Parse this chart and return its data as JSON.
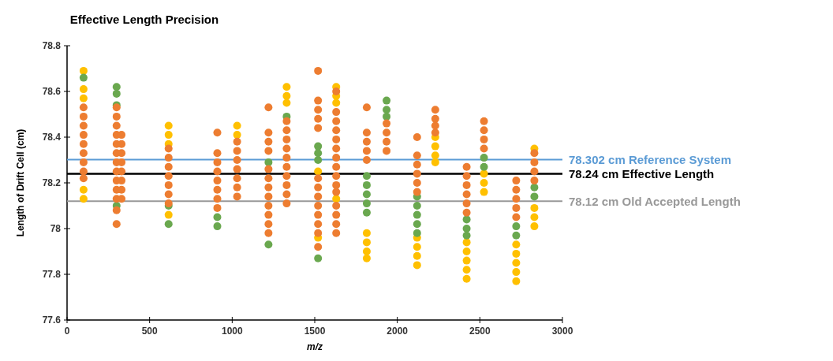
{
  "chart_data": {
    "type": "scatter",
    "title": "Effective Length Precision",
    "xlabel": "m/z",
    "ylabel": "Length of Drift Cell (cm)",
    "xlim": [
      0,
      3000
    ],
    "xticks": [
      0,
      500,
      1000,
      1500,
      2000,
      2500,
      3000
    ],
    "ylim": [
      77.6,
      78.8
    ],
    "yticks": [
      77.6,
      77.8,
      78,
      78.2,
      78.4,
      78.6,
      78.8
    ],
    "marker": "circle",
    "series": [
      {
        "color": "#ffc000",
        "x": [
          100,
          100,
          100,
          100,
          100,
          615,
          615,
          615,
          615,
          1030,
          1030,
          1330,
          1330,
          1330,
          1520,
          1520,
          1630,
          1630,
          1630,
          1630,
          1815,
          1815,
          1815,
          1815,
          2120,
          2120,
          2120,
          2120,
          2230,
          2230,
          2230,
          2230,
          2420,
          2420,
          2420,
          2420,
          2420,
          2525,
          2525,
          2525,
          2720,
          2720,
          2720,
          2720,
          2720,
          2830,
          2830,
          2830,
          2830
        ],
        "values": [
          78.69,
          78.61,
          78.57,
          78.17,
          78.13,
          78.45,
          78.41,
          78.37,
          78.06,
          78.45,
          78.41,
          78.62,
          78.58,
          78.55,
          78.25,
          77.96,
          78.62,
          78.58,
          78.55,
          78.13,
          77.98,
          77.94,
          77.9,
          77.87,
          77.96,
          77.92,
          77.88,
          77.84,
          78.4,
          78.36,
          78.32,
          78.29,
          77.94,
          77.9,
          77.86,
          77.82,
          77.78,
          78.24,
          78.2,
          78.16,
          77.93,
          77.89,
          77.85,
          77.81,
          77.77,
          78.35,
          78.09,
          78.05,
          78.01
        ]
      },
      {
        "color": "#6aa84f",
        "x": [
          100,
          300,
          300,
          300,
          300,
          615,
          615,
          910,
          910,
          1220,
          1220,
          1330,
          1520,
          1520,
          1520,
          1520,
          1815,
          1815,
          1815,
          1815,
          1815,
          1935,
          1935,
          1935,
          2120,
          2120,
          2120,
          2120,
          2120,
          2420,
          2420,
          2420,
          2525,
          2525,
          2720,
          2720,
          2830,
          2830
        ],
        "values": [
          78.66,
          78.62,
          78.59,
          78.54,
          78.1,
          78.1,
          78.02,
          78.05,
          78.01,
          78.29,
          77.93,
          78.49,
          78.36,
          78.33,
          78.3,
          77.87,
          78.23,
          78.19,
          78.15,
          78.11,
          78.07,
          78.56,
          78.52,
          78.49,
          78.14,
          78.1,
          78.06,
          78.02,
          77.98,
          78.04,
          78,
          77.97,
          78.31,
          78.27,
          78.01,
          77.97,
          78.18,
          78.14
        ]
      },
      {
        "color": "#ed7d31",
        "x": [
          100,
          100,
          100,
          100,
          100,
          100,
          100,
          100,
          100,
          300,
          300,
          300,
          300,
          300,
          300,
          300,
          300,
          300,
          300,
          300,
          300,
          300,
          330,
          330,
          330,
          330,
          330,
          330,
          330,
          330,
          615,
          615,
          615,
          615,
          615,
          615,
          615,
          910,
          910,
          910,
          910,
          910,
          910,
          910,
          910,
          1030,
          1030,
          1030,
          1030,
          1030,
          1030,
          1030,
          1220,
          1220,
          1220,
          1220,
          1220,
          1220,
          1220,
          1220,
          1220,
          1220,
          1220,
          1220,
          1330,
          1330,
          1330,
          1330,
          1330,
          1330,
          1330,
          1330,
          1330,
          1330,
          1520,
          1520,
          1520,
          1520,
          1520,
          1520,
          1520,
          1520,
          1520,
          1520,
          1520,
          1520,
          1520,
          1630,
          1630,
          1630,
          1630,
          1630,
          1630,
          1630,
          1630,
          1630,
          1630,
          1630,
          1630,
          1630,
          1630,
          1630,
          1815,
          1815,
          1815,
          1815,
          1815,
          1935,
          1935,
          1935,
          1935,
          2120,
          2120,
          2120,
          2120,
          2120,
          2120,
          2230,
          2230,
          2230,
          2230,
          2420,
          2420,
          2420,
          2420,
          2420,
          2420,
          2525,
          2525,
          2525,
          2525,
          2720,
          2720,
          2720,
          2720,
          2720,
          2830,
          2830,
          2830,
          2830
        ],
        "values": [
          78.53,
          78.49,
          78.45,
          78.41,
          78.37,
          78.33,
          78.29,
          78.25,
          78.22,
          78.53,
          78.49,
          78.45,
          78.41,
          78.37,
          78.33,
          78.29,
          78.25,
          78.21,
          78.17,
          78.13,
          78.08,
          78.02,
          78.41,
          78.37,
          78.33,
          78.29,
          78.25,
          78.21,
          78.17,
          78.13,
          78.35,
          78.31,
          78.27,
          78.23,
          78.19,
          78.15,
          78.11,
          78.42,
          78.33,
          78.29,
          78.25,
          78.21,
          78.17,
          78.13,
          78.09,
          78.38,
          78.34,
          78.3,
          78.26,
          78.22,
          78.18,
          78.14,
          78.53,
          78.42,
          78.38,
          78.34,
          78.26,
          78.22,
          78.18,
          78.14,
          78.1,
          78.06,
          78.02,
          77.98,
          78.47,
          78.43,
          78.39,
          78.35,
          78.31,
          78.27,
          78.23,
          78.19,
          78.15,
          78.11,
          78.69,
          78.56,
          78.52,
          78.48,
          78.44,
          78.22,
          78.18,
          78.14,
          78.1,
          78.06,
          78.02,
          77.98,
          77.92,
          78.6,
          78.51,
          78.47,
          78.43,
          78.39,
          78.35,
          78.31,
          78.27,
          78.23,
          78.19,
          78.16,
          78.1,
          78.06,
          78.02,
          77.98,
          78.53,
          78.42,
          78.38,
          78.34,
          78.3,
          78.46,
          78.42,
          78.38,
          78.34,
          78.4,
          78.32,
          78.28,
          78.24,
          78.2,
          78.16,
          78.52,
          78.48,
          78.45,
          78.42,
          78.27,
          78.23,
          78.19,
          78.15,
          78.11,
          78.07,
          78.47,
          78.43,
          78.39,
          78.35,
          78.21,
          78.17,
          78.13,
          78.09,
          78.05,
          78.33,
          78.29,
          78.25,
          78.21
        ]
      }
    ],
    "ref_lines": [
      {
        "axis": "y",
        "value": 78.302,
        "label": "78.302 cm Reference System",
        "color": "#5b9bd5"
      },
      {
        "axis": "y",
        "value": 78.24,
        "label": "78.24 cm Effective Length",
        "color": "#000000"
      },
      {
        "axis": "y",
        "value": 78.12,
        "label": "78.12 cm Old Accepted Length",
        "color": "#999999"
      }
    ]
  }
}
